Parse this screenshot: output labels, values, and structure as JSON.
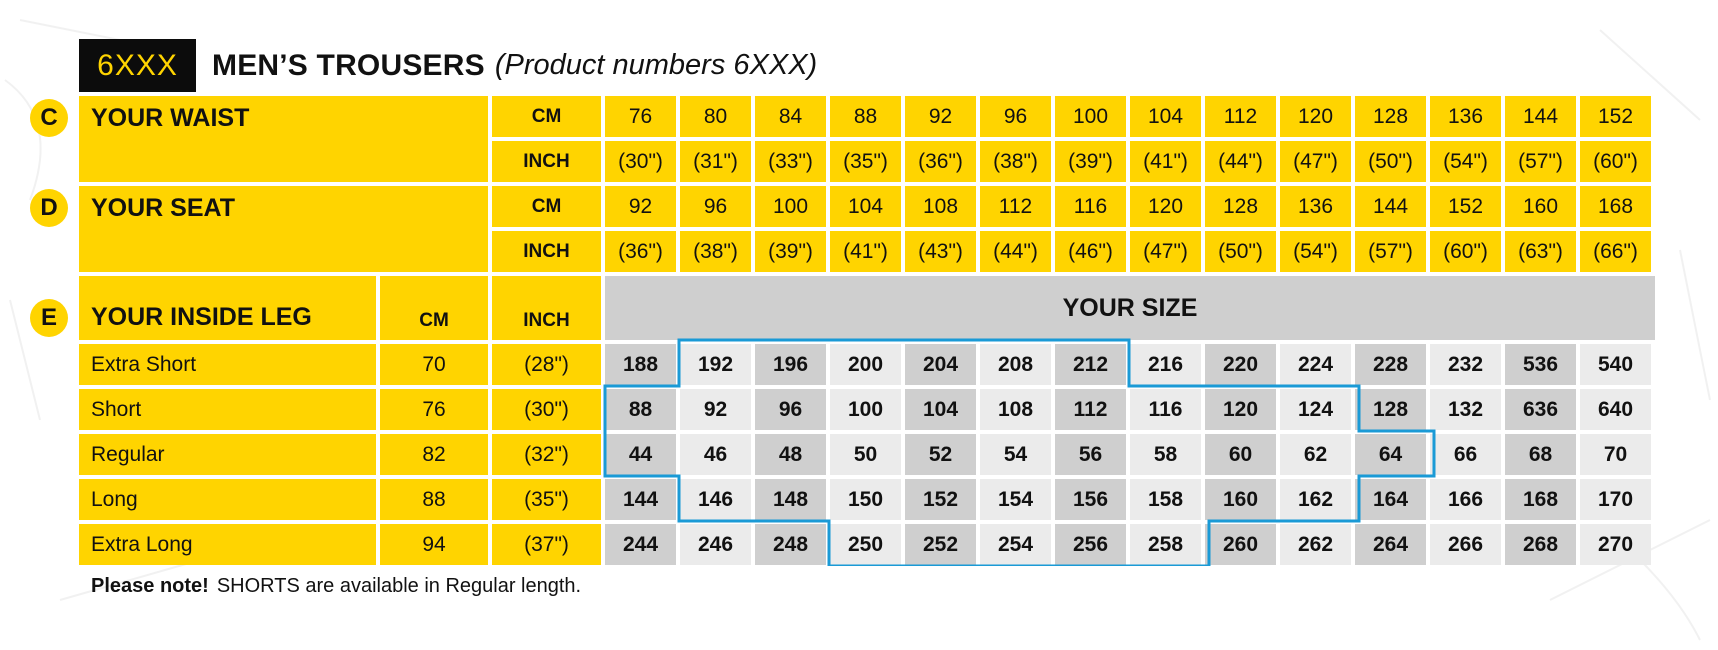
{
  "title": {
    "code": "6XXX",
    "main": "MEN’S TROUSERS",
    "sub": "(Product numbers 6XXX)"
  },
  "section_letters": {
    "waist": "C",
    "seat": "D",
    "leg": "E"
  },
  "labels": {
    "waist": "YOUR WAIST",
    "seat": "YOUR SEAT",
    "leg": "YOUR INSIDE LEG",
    "cm": "CM",
    "inch": "INCH",
    "your_size": "YOUR SIZE"
  },
  "waist": {
    "cm": [
      "76",
      "80",
      "84",
      "88",
      "92",
      "96",
      "100",
      "104",
      "112",
      "120",
      "128",
      "136",
      "144",
      "152"
    ],
    "inch": [
      "(30\")",
      "(31\")",
      "(33\")",
      "(35\")",
      "(36\")",
      "(38\")",
      "(39\")",
      "(41\")",
      "(44\")",
      "(47\")",
      "(50\")",
      "(54\")",
      "(57\")",
      "(60\")"
    ]
  },
  "seat": {
    "cm": [
      "92",
      "96",
      "100",
      "104",
      "108",
      "112",
      "116",
      "120",
      "128",
      "136",
      "144",
      "152",
      "160",
      "168"
    ],
    "inch": [
      "(36\")",
      "(38\")",
      "(39\")",
      "(41\")",
      "(43\")",
      "(44\")",
      "(46\")",
      "(47\")",
      "(50\")",
      "(54\")",
      "(57\")",
      "(60\")",
      "(63\")",
      "(66\")"
    ]
  },
  "leg_rows": [
    {
      "name": "Extra Short",
      "cm": "70",
      "inch": "(28\")",
      "sizes": [
        "188",
        "192",
        "196",
        "200",
        "204",
        "208",
        "212",
        "216",
        "220",
        "224",
        "228",
        "232",
        "536",
        "540"
      ]
    },
    {
      "name": "Short",
      "cm": "76",
      "inch": "(30\")",
      "sizes": [
        "88",
        "92",
        "96",
        "100",
        "104",
        "108",
        "112",
        "116",
        "120",
        "124",
        "128",
        "132",
        "636",
        "640"
      ]
    },
    {
      "name": "Regular",
      "cm": "82",
      "inch": "(32\")",
      "sizes": [
        "44",
        "46",
        "48",
        "50",
        "52",
        "54",
        "56",
        "58",
        "60",
        "62",
        "64",
        "66",
        "68",
        "70"
      ]
    },
    {
      "name": "Long",
      "cm": "88",
      "inch": "(35\")",
      "sizes": [
        "144",
        "146",
        "148",
        "150",
        "152",
        "154",
        "156",
        "158",
        "160",
        "162",
        "164",
        "166",
        "168",
        "170"
      ]
    },
    {
      "name": "Extra Long",
      "cm": "94",
      "inch": "(37\")",
      "sizes": [
        "244",
        "246",
        "248",
        "250",
        "252",
        "254",
        "256",
        "258",
        "260",
        "262",
        "264",
        "266",
        "268",
        "270"
      ]
    }
  ],
  "shaded_columns": [
    0,
    2,
    4,
    6,
    8,
    10,
    12
  ],
  "colors": {
    "yellow": "#ffd400",
    "gray_light": "#ebebeb",
    "gray_dark": "#cfcfcf",
    "outline": "#1a9ad6",
    "badge": "#0c0c0c"
  },
  "note": {
    "bold": "Please note!",
    "text": "SHORTS are available in Regular length."
  }
}
